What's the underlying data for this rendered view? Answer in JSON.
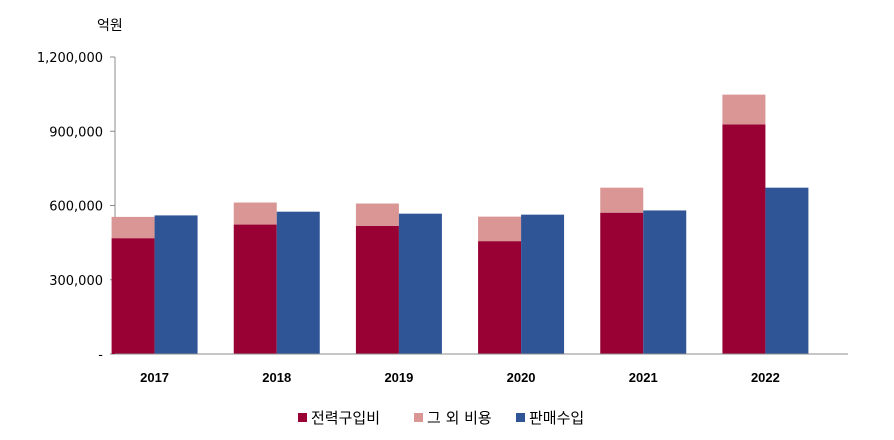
{
  "chart_data": {
    "type": "bar",
    "title": "",
    "ylabel": "억원",
    "xlabel": "",
    "categories": [
      "2017",
      "2018",
      "2019",
      "2020",
      "2021",
      "2022"
    ],
    "ylim": [
      0,
      1200000
    ],
    "yticks": [
      0,
      300000,
      600000,
      900000,
      1200000
    ],
    "ytick_labels": [
      "-",
      "300,000",
      "600,000",
      "900,000",
      "1,200,000"
    ],
    "series": [
      {
        "name": "전력구입비",
        "color": "#990033",
        "stack": "cost",
        "values": [
          468000,
          523000,
          518000,
          456000,
          571000,
          928000
        ]
      },
      {
        "name": "그 외 비용",
        "color": "#d99694",
        "stack": "cost",
        "values": [
          86000,
          89000,
          90000,
          99000,
          101000,
          120000
        ]
      },
      {
        "name": "판매수입",
        "color": "#2f5597",
        "stack": "revenue",
        "values": [
          560000,
          575000,
          567000,
          563000,
          580000,
          672000
        ]
      }
    ],
    "legend_position": "bottom",
    "grid": false
  }
}
